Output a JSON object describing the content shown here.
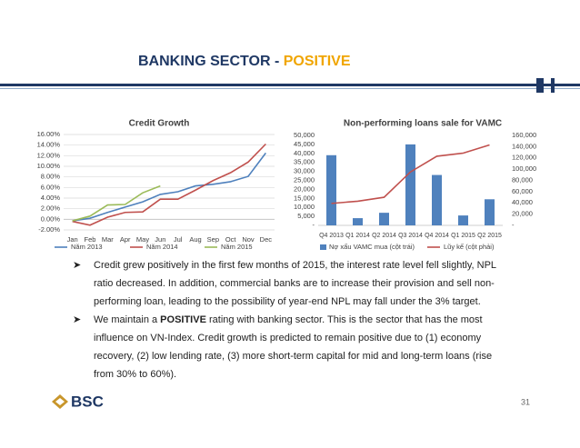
{
  "header": {
    "title": "BANKING SECTOR - ",
    "highlight": "POSITIVE"
  },
  "chart_data": [
    {
      "type": "line",
      "title": "Credit Growth",
      "categories": [
        "Jan",
        "Feb",
        "Mar",
        "Apr",
        "May",
        "Jun",
        "Jul",
        "Aug",
        "Sep",
        "Oct",
        "Nov",
        "Dec"
      ],
      "series": [
        {
          "name": "Năm 2013",
          "color": "#4f81bd",
          "values": [
            -0.3,
            0.2,
            1.3,
            2.3,
            3.3,
            4.7,
            5.2,
            6.3,
            6.6,
            7.1,
            8.1,
            12.5
          ]
        },
        {
          "name": "Năm 2014",
          "color": "#c0504d",
          "values": [
            -0.4,
            -1.1,
            0.4,
            1.3,
            1.4,
            3.8,
            3.8,
            5.5,
            7.3,
            8.8,
            10.8,
            14.2
          ]
        },
        {
          "name": "Năm 2015",
          "color": "#9bbb59",
          "values": [
            -0.3,
            0.6,
            2.7,
            2.8,
            5.0,
            6.3,
            null,
            null,
            null,
            null,
            null,
            null
          ]
        }
      ],
      "ylim": [
        -2,
        16
      ],
      "yticks": [
        {
          "value": -2,
          "label": "-2.00%"
        },
        {
          "value": 0,
          "label": "0.00%"
        },
        {
          "value": 2,
          "label": "2.00%"
        },
        {
          "value": 4,
          "label": "4.00%"
        },
        {
          "value": 6,
          "label": "6.00%"
        },
        {
          "value": 8,
          "label": "8.00%"
        },
        {
          "value": 10,
          "label": "10.00%"
        },
        {
          "value": 12,
          "label": "12.00%"
        },
        {
          "value": 14,
          "label": "14.00%"
        },
        {
          "value": 16,
          "label": "16.00%"
        }
      ],
      "grid": true
    },
    {
      "type": "combo",
      "title": "Non-performing loans sale for VAMC",
      "categories": [
        "Q4 2013",
        "Q1 2014",
        "Q2 2014",
        "Q3 2014",
        "Q4 2014",
        "Q1 2015",
        "Q2 2015"
      ],
      "series": [
        {
          "name": "Nợ xấu VAMC mua (cột trái)",
          "type": "bar",
          "color": "#4f81bd",
          "values": [
            39000,
            4000,
            7000,
            45000,
            28000,
            5500,
            14500
          ]
        },
        {
          "name": "Lũy kế (cột phải)",
          "type": "line",
          "axis": "y2",
          "color": "#c0504d",
          "values": [
            39000,
            43000,
            50000,
            95000,
            123000,
            128500,
            143000
          ]
        }
      ],
      "ylim": [
        0,
        50000
      ],
      "yticks": [
        {
          "value": 0,
          "label": "-"
        },
        {
          "value": 5000,
          "label": "5,000"
        },
        {
          "value": 10000,
          "label": "10,000"
        },
        {
          "value": 15000,
          "label": "15,000"
        },
        {
          "value": 20000,
          "label": "20,000"
        },
        {
          "value": 25000,
          "label": "25,000"
        },
        {
          "value": 30000,
          "label": "30,000"
        },
        {
          "value": 35000,
          "label": "35,000"
        },
        {
          "value": 40000,
          "label": "40,000"
        },
        {
          "value": 45000,
          "label": "45,000"
        },
        {
          "value": 50000,
          "label": "50,000"
        }
      ],
      "y2lim": [
        0,
        160000
      ],
      "y2ticks": [
        {
          "value": 0,
          "label": "-"
        },
        {
          "value": 20000,
          "label": "20,000"
        },
        {
          "value": 40000,
          "label": "40,000"
        },
        {
          "value": 60000,
          "label": "60,000"
        },
        {
          "value": 80000,
          "label": "80,000"
        },
        {
          "value": 100000,
          "label": "100,000"
        },
        {
          "value": 120000,
          "label": "120,000"
        },
        {
          "value": 140000,
          "label": "140,000"
        },
        {
          "value": 160000,
          "label": "160,000"
        }
      ],
      "grid": false
    }
  ],
  "bullets": [
    {
      "text": "Credit grew positively in the first few months of 2015, the interest rate level fell slightly, NPL ratio decreased. In addition, commercial banks are to increase their provision and sell non-performing loan, leading to the possibility of year-end NPL may fall under the 3% target."
    },
    {
      "before": "We maintain a ",
      "bold": "POSITIVE",
      "after": " rating with banking sector. This is the sector that has the most influence on VN-Index. Credit growth is predicted to remain positive due to (1) economy recovery, (2) low lending rate, (3) more short-term capital for mid and long-term loans (rise from 30% to 60%)."
    }
  ],
  "logo": "BSC",
  "page_number": "31"
}
